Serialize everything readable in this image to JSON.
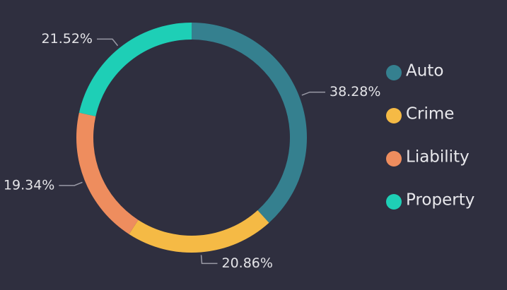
{
  "chart_data": {
    "type": "donut",
    "categories": [
      "Auto",
      "Crime",
      "Liability",
      "Property"
    ],
    "values": [
      38.28,
      20.86,
      19.34,
      21.52
    ],
    "value_labels": [
      "38.28%",
      "20.86%",
      "19.34%",
      "21.52%"
    ],
    "colors": [
      "#35808f",
      "#f5ba45",
      "#ee8d5e",
      "#1ecfb6"
    ],
    "legend": "right"
  }
}
